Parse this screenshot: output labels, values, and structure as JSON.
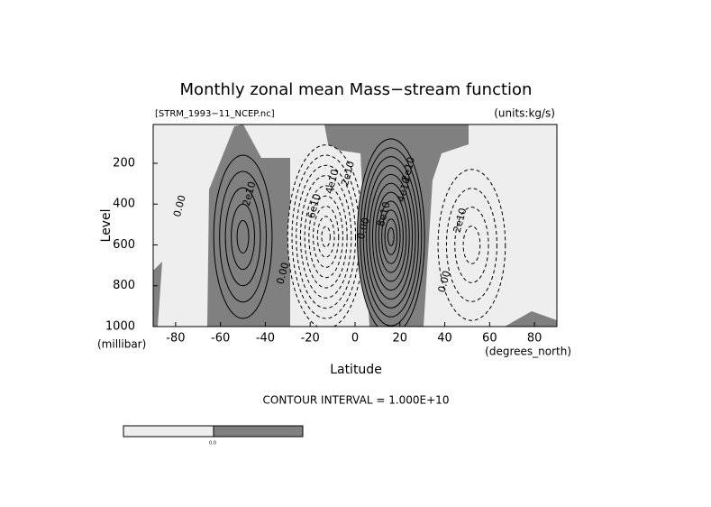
{
  "chart_data": {
    "type": "contour",
    "title": "Monthly zonal mean Mass−stream function",
    "subtitle_left": "[STRM_1993−11_NCEP.nc]",
    "subtitle_right": "(units:kg/s)",
    "x_label": "Latitude",
    "x_unit": "(degrees_north)",
    "y_label": "Level",
    "y_unit": "(millibar)",
    "contour_interval": "CONTOUR INTERVAL = 1.000E+10",
    "xlim": [
      -90,
      90
    ],
    "ylim": [
      1000,
      10
    ],
    "xticks": [
      -80,
      -60,
      -40,
      -20,
      0,
      20,
      40,
      60,
      80
    ],
    "yticks": [
      200,
      400,
      600,
      800,
      1000
    ],
    "colors": {
      "negative": "#eeeeee",
      "positive": "#808080"
    },
    "cells": [
      {
        "lat": -50,
        "level": 560,
        "lat_halfwidth": 13,
        "level_halfheight": 400,
        "peak": 5
      },
      {
        "lat": -13,
        "level": 560,
        "lat_halfwidth": 17,
        "level_halfheight": 450,
        "peak": -9
      },
      {
        "lat": 16,
        "level": 560,
        "lat_halfwidth": 15,
        "level_halfheight": 480,
        "peak": 11
      },
      {
        "lat": 52,
        "level": 600,
        "lat_halfwidth": 15,
        "level_halfheight": 370,
        "peak": -4
      }
    ],
    "contour_labels": [
      {
        "text": "0.00",
        "lat": -78,
        "level": 410
      },
      {
        "text": "2e10",
        "lat": -47,
        "level": 350
      },
      {
        "text": "0.00",
        "lat": -32,
        "level": 740
      },
      {
        "text": "6e10",
        "lat": -18,
        "level": 410
      },
      {
        "text": "4e10",
        "lat": -10,
        "level": 290
      },
      {
        "text": "2e10",
        "lat": -3,
        "level": 250
      },
      {
        "text": "0.00",
        "lat": 4,
        "level": 520
      },
      {
        "text": "8e10",
        "lat": 13,
        "level": 450
      },
      {
        "text": "4e10",
        "lat": 22,
        "level": 330
      },
      {
        "text": "2e10",
        "lat": 24,
        "level": 230
      },
      {
        "text": "2e10",
        "lat": 47,
        "level": 480
      },
      {
        "text": "0.00",
        "lat": 40,
        "level": 780
      }
    ],
    "colorbar_label": "0.0"
  }
}
